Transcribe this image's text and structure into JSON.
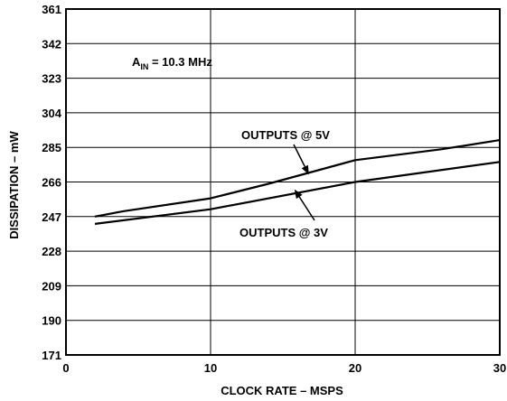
{
  "chart_data": {
    "type": "line",
    "xlabel": "CLOCK RATE – MSPS",
    "ylabel": "DISSIPATION – mW",
    "xlim": [
      0,
      30
    ],
    "ylim": [
      171,
      361
    ],
    "xticks": [
      0,
      10,
      20,
      30
    ],
    "xtick_labels": [
      "0",
      "10",
      "20",
      "30"
    ],
    "yticks": [
      171,
      190,
      209,
      228,
      247,
      266,
      285,
      304,
      323,
      342,
      361
    ],
    "ytick_labels": [
      "171",
      "190",
      "209",
      "228",
      "247",
      "266",
      "285",
      "304",
      "323",
      "342",
      "361"
    ],
    "grid": true,
    "series": [
      {
        "name": "OUTPUTS @ 5V",
        "x": [
          2,
          4,
          10,
          14,
          20,
          26,
          30
        ],
        "y": [
          247,
          250,
          257,
          265,
          278,
          284,
          289
        ]
      },
      {
        "name": "OUTPUTS @ 3V",
        "x": [
          2,
          10,
          20,
          30
        ],
        "y": [
          243,
          251,
          266,
          277
        ]
      }
    ],
    "annotations": {
      "condition": {
        "main": "A",
        "sub": "IN",
        "rest": " = 10.3 MHz"
      },
      "label_5v": {
        "text": "OUTPUTS @ 5V",
        "arrow_to": [
          16.8,
          270
        ]
      },
      "label_3v": {
        "text": "OUTPUTS @ 3V",
        "arrow_to": [
          15.8,
          262
        ]
      }
    }
  }
}
